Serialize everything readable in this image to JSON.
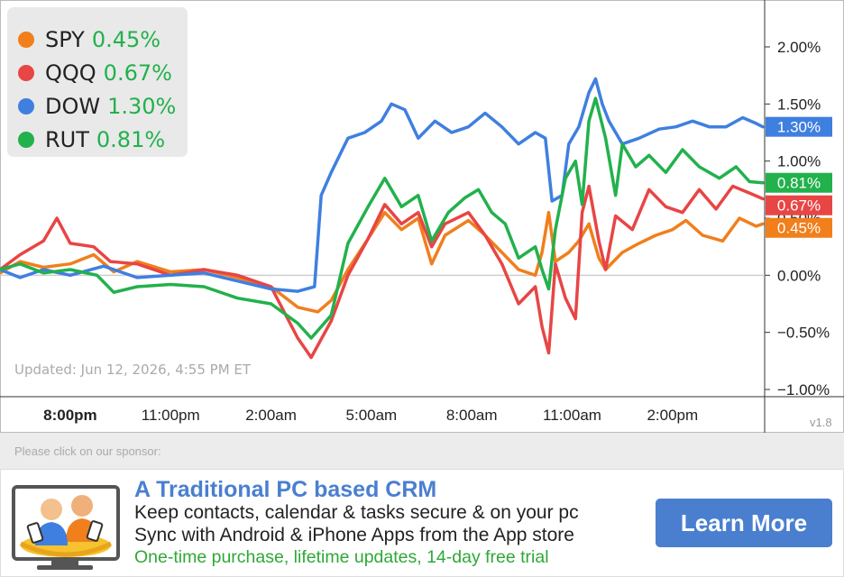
{
  "legend": [
    {
      "name": "SPY",
      "value": "0.45%",
      "color": "#f07f1c"
    },
    {
      "name": "QQQ",
      "value": "0.67%",
      "color": "#e84545"
    },
    {
      "name": "DOW",
      "value": "1.30%",
      "color": "#3f7fe0"
    },
    {
      "name": "RUT",
      "value": "0.81%",
      "color": "#22b14c"
    }
  ],
  "updated_text": "Updated: Jun 12, 2026, 4:55 PM ET",
  "version": "v1.8",
  "chart_data": {
    "type": "line",
    "y_ticks": [
      "2.00%",
      "1.50%",
      "1.00%",
      "0.50%",
      "0.00%",
      "−0.50%",
      "−1.00%"
    ],
    "y_tick_values": [
      2.0,
      1.5,
      1.0,
      0.5,
      0.0,
      -0.5,
      -1.0
    ],
    "ylim": [
      -1.0,
      2.0
    ],
    "x_ticks": [
      "8:00pm",
      "11:00pm",
      "2:00am",
      "5:00am",
      "8:00am",
      "11:00am",
      "2:00pm"
    ],
    "x_tick_values": [
      0,
      3,
      6,
      9,
      12,
      15,
      18
    ],
    "xlim": [
      -2.1,
      20.7
    ],
    "baseline": 0.0,
    "series": [
      {
        "name": "SPY",
        "color": "#f07f1c",
        "end_label": "0.45%",
        "points": [
          [
            -2.1,
            0.02
          ],
          [
            -1.5,
            0.12
          ],
          [
            -0.8,
            0.07
          ],
          [
            0,
            0.1
          ],
          [
            0.7,
            0.18
          ],
          [
            1.3,
            0.03
          ],
          [
            2,
            0.12
          ],
          [
            3,
            0.03
          ],
          [
            4,
            0.05
          ],
          [
            5,
            -0.02
          ],
          [
            6,
            -0.1
          ],
          [
            6.8,
            -0.28
          ],
          [
            7.4,
            -0.32
          ],
          [
            7.8,
            -0.22
          ],
          [
            8.3,
            0.05
          ],
          [
            8.9,
            0.32
          ],
          [
            9.4,
            0.55
          ],
          [
            9.9,
            0.4
          ],
          [
            10.4,
            0.5
          ],
          [
            10.8,
            0.1
          ],
          [
            11.2,
            0.35
          ],
          [
            11.9,
            0.48
          ],
          [
            12.4,
            0.35
          ],
          [
            12.9,
            0.2
          ],
          [
            13.4,
            0.05
          ],
          [
            13.9,
            0.0
          ],
          [
            14.1,
            0.2
          ],
          [
            14.3,
            0.55
          ],
          [
            14.5,
            0.12
          ],
          [
            14.9,
            0.2
          ],
          [
            15.2,
            0.3
          ],
          [
            15.5,
            0.45
          ],
          [
            15.8,
            0.15
          ],
          [
            16,
            0.05
          ],
          [
            16.5,
            0.2
          ],
          [
            17,
            0.28
          ],
          [
            17.5,
            0.35
          ],
          [
            18,
            0.4
          ],
          [
            18.4,
            0.48
          ],
          [
            18.9,
            0.35
          ],
          [
            19.5,
            0.3
          ],
          [
            20,
            0.5
          ],
          [
            20.5,
            0.43
          ],
          [
            20.7,
            0.45
          ]
        ]
      },
      {
        "name": "QQQ",
        "color": "#e84545",
        "end_label": "0.67%",
        "points": [
          [
            -2.1,
            0.05
          ],
          [
            -1.5,
            0.18
          ],
          [
            -0.8,
            0.3
          ],
          [
            -0.4,
            0.5
          ],
          [
            0,
            0.28
          ],
          [
            0.7,
            0.25
          ],
          [
            1.2,
            0.12
          ],
          [
            2,
            0.1
          ],
          [
            3,
            0.0
          ],
          [
            4,
            0.05
          ],
          [
            5,
            0.0
          ],
          [
            6,
            -0.1
          ],
          [
            6.8,
            -0.55
          ],
          [
            7.2,
            -0.72
          ],
          [
            7.8,
            -0.4
          ],
          [
            8.3,
            0.0
          ],
          [
            8.9,
            0.32
          ],
          [
            9.4,
            0.62
          ],
          [
            9.9,
            0.45
          ],
          [
            10.4,
            0.55
          ],
          [
            10.8,
            0.25
          ],
          [
            11.2,
            0.45
          ],
          [
            11.9,
            0.55
          ],
          [
            12.4,
            0.35
          ],
          [
            12.9,
            0.1
          ],
          [
            13.4,
            -0.25
          ],
          [
            13.9,
            -0.1
          ],
          [
            14.1,
            -0.45
          ],
          [
            14.3,
            -0.68
          ],
          [
            14.5,
            0.1
          ],
          [
            14.8,
            -0.2
          ],
          [
            15.1,
            -0.38
          ],
          [
            15.3,
            0.55
          ],
          [
            15.5,
            0.78
          ],
          [
            15.8,
            0.3
          ],
          [
            16,
            0.05
          ],
          [
            16.3,
            0.52
          ],
          [
            16.8,
            0.4
          ],
          [
            17.3,
            0.75
          ],
          [
            17.8,
            0.6
          ],
          [
            18.3,
            0.55
          ],
          [
            18.8,
            0.75
          ],
          [
            19.3,
            0.58
          ],
          [
            19.8,
            0.78
          ],
          [
            20.3,
            0.72
          ],
          [
            20.7,
            0.67
          ]
        ]
      },
      {
        "name": "DOW",
        "color": "#3f7fe0",
        "end_label": "1.30%",
        "points": [
          [
            -2.1,
            0.05
          ],
          [
            -1.5,
            -0.02
          ],
          [
            -0.8,
            0.05
          ],
          [
            0,
            0.0
          ],
          [
            1,
            0.08
          ],
          [
            2,
            -0.02
          ],
          [
            3,
            0.0
          ],
          [
            4,
            0.02
          ],
          [
            5,
            -0.05
          ],
          [
            6,
            -0.12
          ],
          [
            6.8,
            -0.14
          ],
          [
            7.3,
            -0.1
          ],
          [
            7.5,
            0.7
          ],
          [
            7.8,
            0.9
          ],
          [
            8.3,
            1.2
          ],
          [
            8.8,
            1.25
          ],
          [
            9.3,
            1.35
          ],
          [
            9.6,
            1.5
          ],
          [
            10,
            1.45
          ],
          [
            10.4,
            1.2
          ],
          [
            10.9,
            1.35
          ],
          [
            11.4,
            1.25
          ],
          [
            11.9,
            1.3
          ],
          [
            12.4,
            1.42
          ],
          [
            12.9,
            1.3
          ],
          [
            13.4,
            1.15
          ],
          [
            13.9,
            1.25
          ],
          [
            14.2,
            1.2
          ],
          [
            14.4,
            0.65
          ],
          [
            14.7,
            0.7
          ],
          [
            14.9,
            1.15
          ],
          [
            15.2,
            1.3
          ],
          [
            15.5,
            1.6
          ],
          [
            15.7,
            1.72
          ],
          [
            15.9,
            1.5
          ],
          [
            16.1,
            1.35
          ],
          [
            16.5,
            1.15
          ],
          [
            17,
            1.2
          ],
          [
            17.6,
            1.28
          ],
          [
            18.1,
            1.3
          ],
          [
            18.6,
            1.35
          ],
          [
            19.1,
            1.3
          ],
          [
            19.6,
            1.3
          ],
          [
            20.1,
            1.38
          ],
          [
            20.5,
            1.33
          ],
          [
            20.7,
            1.3
          ]
        ]
      },
      {
        "name": "RUT",
        "color": "#22b14c",
        "end_label": "0.81%",
        "points": [
          [
            -2.1,
            0.05
          ],
          [
            -1.5,
            0.1
          ],
          [
            -0.8,
            0.02
          ],
          [
            0,
            0.05
          ],
          [
            0.8,
            0.0
          ],
          [
            1.3,
            -0.15
          ],
          [
            2,
            -0.1
          ],
          [
            3,
            -0.08
          ],
          [
            4,
            -0.1
          ],
          [
            5,
            -0.2
          ],
          [
            6,
            -0.25
          ],
          [
            6.8,
            -0.42
          ],
          [
            7.2,
            -0.55
          ],
          [
            7.8,
            -0.35
          ],
          [
            8.3,
            0.28
          ],
          [
            8.9,
            0.6
          ],
          [
            9.4,
            0.85
          ],
          [
            9.9,
            0.6
          ],
          [
            10.4,
            0.7
          ],
          [
            10.8,
            0.3
          ],
          [
            11.3,
            0.55
          ],
          [
            11.8,
            0.68
          ],
          [
            12.2,
            0.75
          ],
          [
            12.6,
            0.55
          ],
          [
            13,
            0.45
          ],
          [
            13.4,
            0.15
          ],
          [
            13.9,
            0.25
          ],
          [
            14.1,
            0.05
          ],
          [
            14.3,
            -0.12
          ],
          [
            14.5,
            0.4
          ],
          [
            14.8,
            0.85
          ],
          [
            15.1,
            1.0
          ],
          [
            15.3,
            0.62
          ],
          [
            15.5,
            1.35
          ],
          [
            15.7,
            1.55
          ],
          [
            16,
            1.2
          ],
          [
            16.3,
            0.7
          ],
          [
            16.5,
            1.15
          ],
          [
            16.9,
            0.95
          ],
          [
            17.3,
            1.05
          ],
          [
            17.8,
            0.9
          ],
          [
            18.3,
            1.1
          ],
          [
            18.8,
            0.95
          ],
          [
            19.4,
            0.85
          ],
          [
            19.9,
            0.95
          ],
          [
            20.3,
            0.82
          ],
          [
            20.7,
            0.81
          ]
        ]
      }
    ]
  },
  "sponsor": {
    "label": "Please click on our sponsor:",
    "title": "A Traditional PC based CRM",
    "line1": "Keep contacts, calendar & tasks secure & on your pc",
    "line2": "Sync with Android & iPhone Apps from the App store",
    "line3": "One-time purchase, lifetime updates, 14-day free trial",
    "button": "Learn More"
  }
}
